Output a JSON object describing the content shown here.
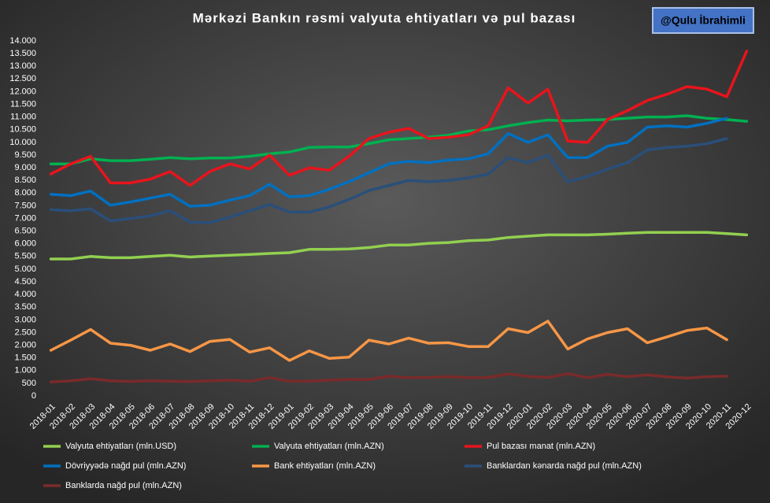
{
  "chart_data": {
    "type": "line",
    "title": "Mərkəzi Bankın rəsmi valyuta ehtiyatları və pul bazası",
    "watermark": "@Qulu İbrahimli",
    "grid": false,
    "categories": [
      "2018-01",
      "2018-02",
      "2018-03",
      "2018-04",
      "2018-05",
      "2018-06",
      "2018-07",
      "2018-08",
      "2018-09",
      "2018-10",
      "2018-11",
      "2018-12",
      "2019-01",
      "2019-02",
      "2019-03",
      "2019-04",
      "2019-05",
      "2019-06",
      "2019-07",
      "2019-08",
      "2019-09",
      "2019-10",
      "2019-11",
      "2019-12",
      "2020-01",
      "2020-02",
      "2020-03",
      "2020-04",
      "2020-05",
      "2020-06",
      "2020-07",
      "2020-08",
      "2020-09",
      "2020-10",
      "2020-11",
      "2020-12"
    ],
    "ylim": [
      0,
      14000
    ],
    "yticks": [
      0,
      500,
      {
        "value": 1000,
        "label": "1.000"
      },
      {
        "value": 1500,
        "label": "1.500"
      },
      {
        "value": 2000,
        "label": "2.000"
      },
      {
        "value": 2500,
        "label": "2.500"
      },
      {
        "value": 3000,
        "label": "3.000"
      },
      {
        "value": 3500,
        "label": "3.500"
      },
      {
        "value": 4000,
        "label": "4.000"
      },
      {
        "value": 4500,
        "label": "4.500"
      },
      {
        "value": 5000,
        "label": "5.000"
      },
      {
        "value": 5500,
        "label": "5.500"
      },
      {
        "value": 6000,
        "label": "6.000"
      },
      {
        "value": 6500,
        "label": "6.500"
      },
      {
        "value": 7000,
        "label": "7.000"
      },
      {
        "value": 7500,
        "label": "7.500"
      },
      {
        "value": 8000,
        "label": "8.000"
      },
      {
        "value": 8500,
        "label": "8.500"
      },
      {
        "value": 9000,
        "label": "9.000"
      },
      {
        "value": 9500,
        "label": "9.500"
      },
      {
        "value": 10000,
        "label": "10.000"
      },
      {
        "value": 10500,
        "label": "10.500"
      },
      {
        "value": 11000,
        "label": "11.000"
      },
      {
        "value": 11500,
        "label": "11.500"
      },
      {
        "value": 12000,
        "label": "12.000"
      },
      {
        "value": 12500,
        "label": "12.500"
      },
      {
        "value": 13000,
        "label": "13.000"
      },
      {
        "value": 13500,
        "label": "13.500"
      },
      {
        "value": 14000,
        "label": "14.000"
      }
    ],
    "series": [
      {
        "name": "Valyuta ehtiyatları (mln.USD)",
        "color": "#92d050",
        "values": [
          5400,
          5400,
          5500,
          5450,
          5450,
          5500,
          5550,
          5480,
          5520,
          5550,
          5580,
          5620,
          5650,
          5780,
          5780,
          5800,
          5850,
          5950,
          5950,
          6020,
          6050,
          6120,
          6150,
          6250,
          6300,
          6350,
          6350,
          6350,
          6380,
          6420,
          6450,
          6450,
          6450,
          6450,
          6400,
          6350
        ]
      },
      {
        "name": "Valyuta ehtiyatları (mln.AZN)",
        "color": "#00b050",
        "values": [
          9150,
          9150,
          9350,
          9280,
          9280,
          9330,
          9400,
          9350,
          9380,
          9380,
          9450,
          9550,
          9620,
          9800,
          9820,
          9820,
          9950,
          10100,
          10150,
          10200,
          10280,
          10450,
          10500,
          10650,
          10780,
          10880,
          10850,
          10880,
          10900,
          10950,
          11000,
          11000,
          11050,
          10950,
          10900,
          10830
        ]
      },
      {
        "name": "Pul bazası manat (mln.AZN)",
        "color": "#e8141c",
        "values": [
          8750,
          9150,
          9450,
          8400,
          8400,
          8550,
          8850,
          8300,
          8850,
          9150,
          8950,
          9500,
          8700,
          9000,
          8900,
          9450,
          10150,
          10400,
          10550,
          10150,
          10200,
          10300,
          10650,
          12150,
          11550,
          12100,
          10050,
          10000,
          10900,
          11250,
          11650,
          11900,
          12200,
          12100,
          11800,
          13600
        ]
      },
      {
        "name": "Dövriyyədə nağd pul (mln.AZN)",
        "color": "#0070c0",
        "values": [
          7950,
          7900,
          8080,
          7520,
          7650,
          7800,
          7950,
          7480,
          7520,
          7720,
          7900,
          8350,
          7850,
          7900,
          8150,
          8450,
          8800,
          9150,
          9250,
          9200,
          9300,
          9350,
          9550,
          10350,
          10000,
          10300,
          9400,
          9400,
          9850,
          10000,
          10600,
          10650,
          10600,
          10750,
          10950,
          null
        ]
      },
      {
        "name": "Bank ehtiyatları (mln.AZN)",
        "color": "#f79646",
        "values": [
          1800,
          2200,
          2620,
          2080,
          2000,
          1800,
          2050,
          1750,
          2150,
          2230,
          1730,
          1900,
          1400,
          1780,
          1480,
          1530,
          2200,
          2050,
          2280,
          2080,
          2100,
          1950,
          1950,
          2650,
          2500,
          2950,
          1850,
          2250,
          2500,
          2650,
          2100,
          2330,
          2580,
          2680,
          2220,
          null
        ]
      },
      {
        "name": "Banklardan kənarda nağd pul (mln.AZN)",
        "color": "#2a4f7a",
        "values": [
          7350,
          7300,
          7380,
          6900,
          7000,
          7100,
          7300,
          6850,
          6830,
          7050,
          7300,
          7550,
          7250,
          7250,
          7450,
          7750,
          8100,
          8300,
          8500,
          8450,
          8500,
          8600,
          8750,
          9400,
          9200,
          9500,
          8450,
          8650,
          8950,
          9200,
          9700,
          9800,
          9850,
          9950,
          10150,
          null
        ]
      },
      {
        "name": "Banklarda nağd pul (mln.AZN)",
        "color": "#7a2a2a",
        "values": [
          550,
          600,
          680,
          600,
          570,
          600,
          580,
          570,
          600,
          620,
          580,
          720,
          580,
          580,
          620,
          650,
          650,
          780,
          720,
          730,
          760,
          720,
          730,
          870,
          770,
          730,
          880,
          720,
          850,
          760,
          830,
          750,
          700,
          760,
          780,
          null
        ]
      }
    ]
  }
}
